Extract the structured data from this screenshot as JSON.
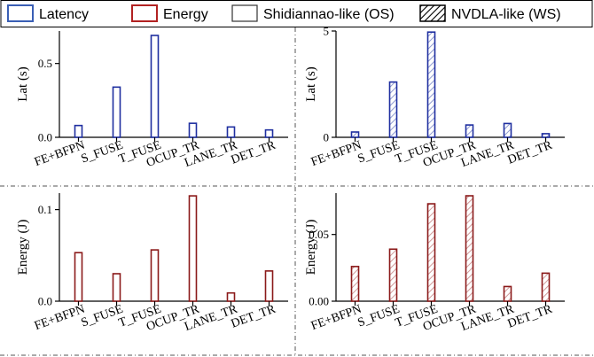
{
  "legend": {
    "items": [
      {
        "label": "Latency",
        "kind": "outline",
        "color": "#3a5fb5"
      },
      {
        "label": "Energy",
        "kind": "outline",
        "color": "#b22222"
      },
      {
        "label": "Shidiannao-like (OS)",
        "kind": "plain",
        "color": "#333333"
      },
      {
        "label": "NVDLA-like (WS)",
        "kind": "hatch",
        "color": "#000000"
      }
    ]
  },
  "colors": {
    "latency": "#1f2fa0",
    "energy": "#8b1a1a",
    "hatch_latency": "#8f9ad0",
    "hatch_energy": "#d09a9a",
    "divider": "#555555"
  },
  "chart_data": [
    {
      "type": "bar",
      "panel": "top-left",
      "metric": "latency",
      "hatched": false,
      "categories": [
        "FE+BFPN",
        "S_FUSE",
        "T_FUSE",
        "OCUP_TR",
        "LANE_TR",
        "DET_TR"
      ],
      "values": [
        0.08,
        0.34,
        0.69,
        0.095,
        0.07,
        0.05
      ],
      "ylabel": "Lat (s)",
      "ylim": [
        0,
        0.72
      ],
      "yticks": [
        0.0,
        0.5
      ],
      "ytick_labels": [
        "0.0",
        "0.5"
      ]
    },
    {
      "type": "bar",
      "panel": "top-right",
      "metric": "latency",
      "hatched": true,
      "categories": [
        "FE+BFPN",
        "S_FUSE",
        "T_FUSE",
        "OCUP_TR",
        "LANE_TR",
        "DET_TR"
      ],
      "values": [
        0.25,
        2.6,
        4.95,
        0.58,
        0.65,
        0.17
      ],
      "ylabel": "Lat (s)",
      "ylim": [
        0,
        5.0
      ],
      "yticks": [
        0,
        5
      ],
      "ytick_labels": [
        "0",
        "5"
      ]
    },
    {
      "type": "bar",
      "panel": "bottom-left",
      "metric": "energy",
      "hatched": false,
      "categories": [
        "FE+BFPN",
        "S_FUSE",
        "T_FUSE",
        "OCUP_TR",
        "LANE_TR",
        "DET_TR"
      ],
      "values": [
        0.053,
        0.03,
        0.056,
        0.115,
        0.009,
        0.033
      ],
      "ylabel": "Energy (J)",
      "ylim": [
        0,
        0.118
      ],
      "yticks": [
        0.0,
        0.1
      ],
      "ytick_labels": [
        "0.0",
        "0.1"
      ]
    },
    {
      "type": "bar",
      "panel": "bottom-right",
      "metric": "energy",
      "hatched": true,
      "categories": [
        "FE+BFPN",
        "S_FUSE",
        "T_FUSE",
        "OCUP_TR",
        "LANE_TR",
        "DET_TR"
      ],
      "values": [
        0.026,
        0.039,
        0.073,
        0.079,
        0.011,
        0.021
      ],
      "ylabel": "Energy (J)",
      "ylim": [
        0,
        0.081
      ],
      "yticks": [
        0.0,
        0.05
      ],
      "ytick_labels": [
        "0.00",
        "0.05"
      ]
    }
  ]
}
